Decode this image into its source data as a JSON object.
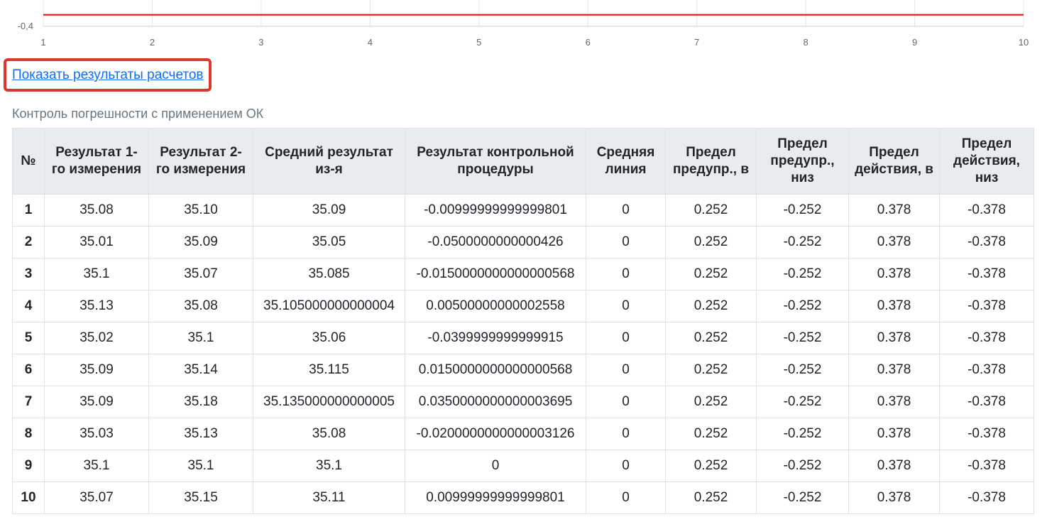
{
  "chart_data": {
    "type": "line",
    "y_tick_labels": [
      "-0,4"
    ],
    "x_tick_labels": [
      "1",
      "2",
      "3",
      "4",
      "5",
      "6",
      "7",
      "8",
      "9",
      "10"
    ],
    "series": [
      {
        "color": "#e03131",
        "x": [
          1,
          2,
          3,
          4,
          5,
          6,
          7,
          8,
          9,
          10
        ],
        "values": [
          -0.378,
          -0.378,
          -0.378,
          -0.378,
          -0.378,
          -0.378,
          -0.378,
          -0.378,
          -0.378,
          -0.378
        ]
      }
    ],
    "xlim": [
      1,
      10
    ],
    "grid": true
  },
  "link": {
    "label": "Показать результаты расчетов"
  },
  "caption": "Контроль погрешности с применением ОК",
  "table": {
    "headers": [
      "№",
      "Результат 1-го измерения",
      "Результат 2-го измерения",
      "Средний результат из-я",
      "Результат контрольной процедуры",
      "Средняя линия",
      "Предел предупр., в",
      "Предел предупр., низ",
      "Предел действия, в",
      "Предел действия, низ"
    ],
    "rows": [
      [
        "1",
        "35.08",
        "35.10",
        "35.09",
        "-0.00999999999999801",
        "0",
        "0.252",
        "-0.252",
        "0.378",
        "-0.378"
      ],
      [
        "2",
        "35.01",
        "35.09",
        "35.05",
        "-0.0500000000000426",
        "0",
        "0.252",
        "-0.252",
        "0.378",
        "-0.378"
      ],
      [
        "3",
        "35.1",
        "35.07",
        "35.085",
        "-0.0150000000000000568",
        "0",
        "0.252",
        "-0.252",
        "0.378",
        "-0.378"
      ],
      [
        "4",
        "35.13",
        "35.08",
        "35.105000000000004",
        "0.00500000000002558",
        "0",
        "0.252",
        "-0.252",
        "0.378",
        "-0.378"
      ],
      [
        "5",
        "35.02",
        "35.1",
        "35.06",
        "-0.0399999999999915",
        "0",
        "0.252",
        "-0.252",
        "0.378",
        "-0.378"
      ],
      [
        "6",
        "35.09",
        "35.14",
        "35.115",
        "0.0150000000000000568",
        "0",
        "0.252",
        "-0.252",
        "0.378",
        "-0.378"
      ],
      [
        "7",
        "35.09",
        "35.18",
        "35.135000000000005",
        "0.0350000000000003695",
        "0",
        "0.252",
        "-0.252",
        "0.378",
        "-0.378"
      ],
      [
        "8",
        "35.03",
        "35.13",
        "35.08",
        "-0.0200000000000003126",
        "0",
        "0.252",
        "-0.252",
        "0.378",
        "-0.378"
      ],
      [
        "9",
        "35.1",
        "35.1",
        "35.1",
        "0",
        "0",
        "0.252",
        "-0.252",
        "0.378",
        "-0.378"
      ],
      [
        "10",
        "35.07",
        "35.15",
        "35.11",
        "0.00999999999999801",
        "0",
        "0.252",
        "-0.252",
        "0.378",
        "-0.378"
      ]
    ]
  }
}
